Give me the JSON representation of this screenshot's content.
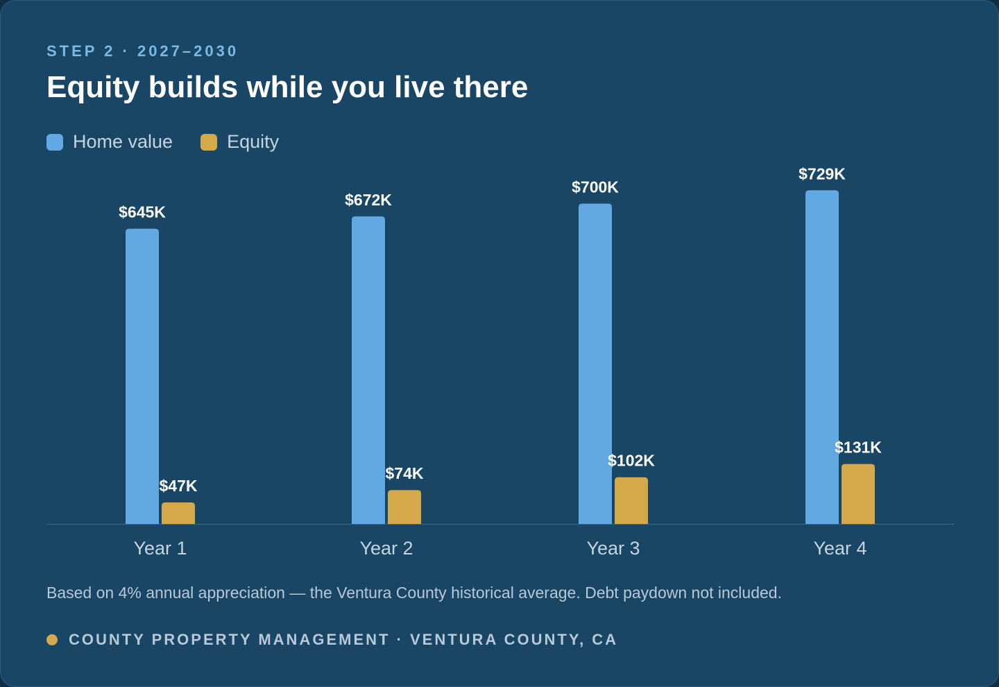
{
  "header": {
    "eyebrow": "STEP 2 · 2027–2030",
    "title": "Equity builds while you live there"
  },
  "legend": [
    {
      "label": "Home value",
      "color": "#62a8e3"
    },
    {
      "label": "Equity",
      "color": "#d4a94a"
    }
  ],
  "chart_data": {
    "type": "bar",
    "categories": [
      "Year 1",
      "Year 2",
      "Year 3",
      "Year 4"
    ],
    "series": [
      {
        "name": "Home value",
        "values": [
          645,
          672,
          700,
          729
        ],
        "labels": [
          "$645K",
          "$672K",
          "$700K",
          "$729K"
        ],
        "color": "#62a8e3"
      },
      {
        "name": "Equity",
        "values": [
          47,
          74,
          102,
          131
        ],
        "labels": [
          "$47K",
          "$74K",
          "$102K",
          "$131K"
        ],
        "color": "#d4a94a"
      }
    ],
    "title": "Equity builds while you live there",
    "xlabel": "",
    "ylabel": "",
    "unit": "$K",
    "ylim": [
      0,
      737
    ],
    "grid": false,
    "legend_position": "top-left"
  },
  "footnote": "Based on 4% annual appreciation — the Ventura County historical average. Debt paydown not included.",
  "brand": {
    "text": "COUNTY PROPERTY MANAGEMENT · VENTURA COUNTY, CA",
    "dot_color": "#d4a94a"
  }
}
